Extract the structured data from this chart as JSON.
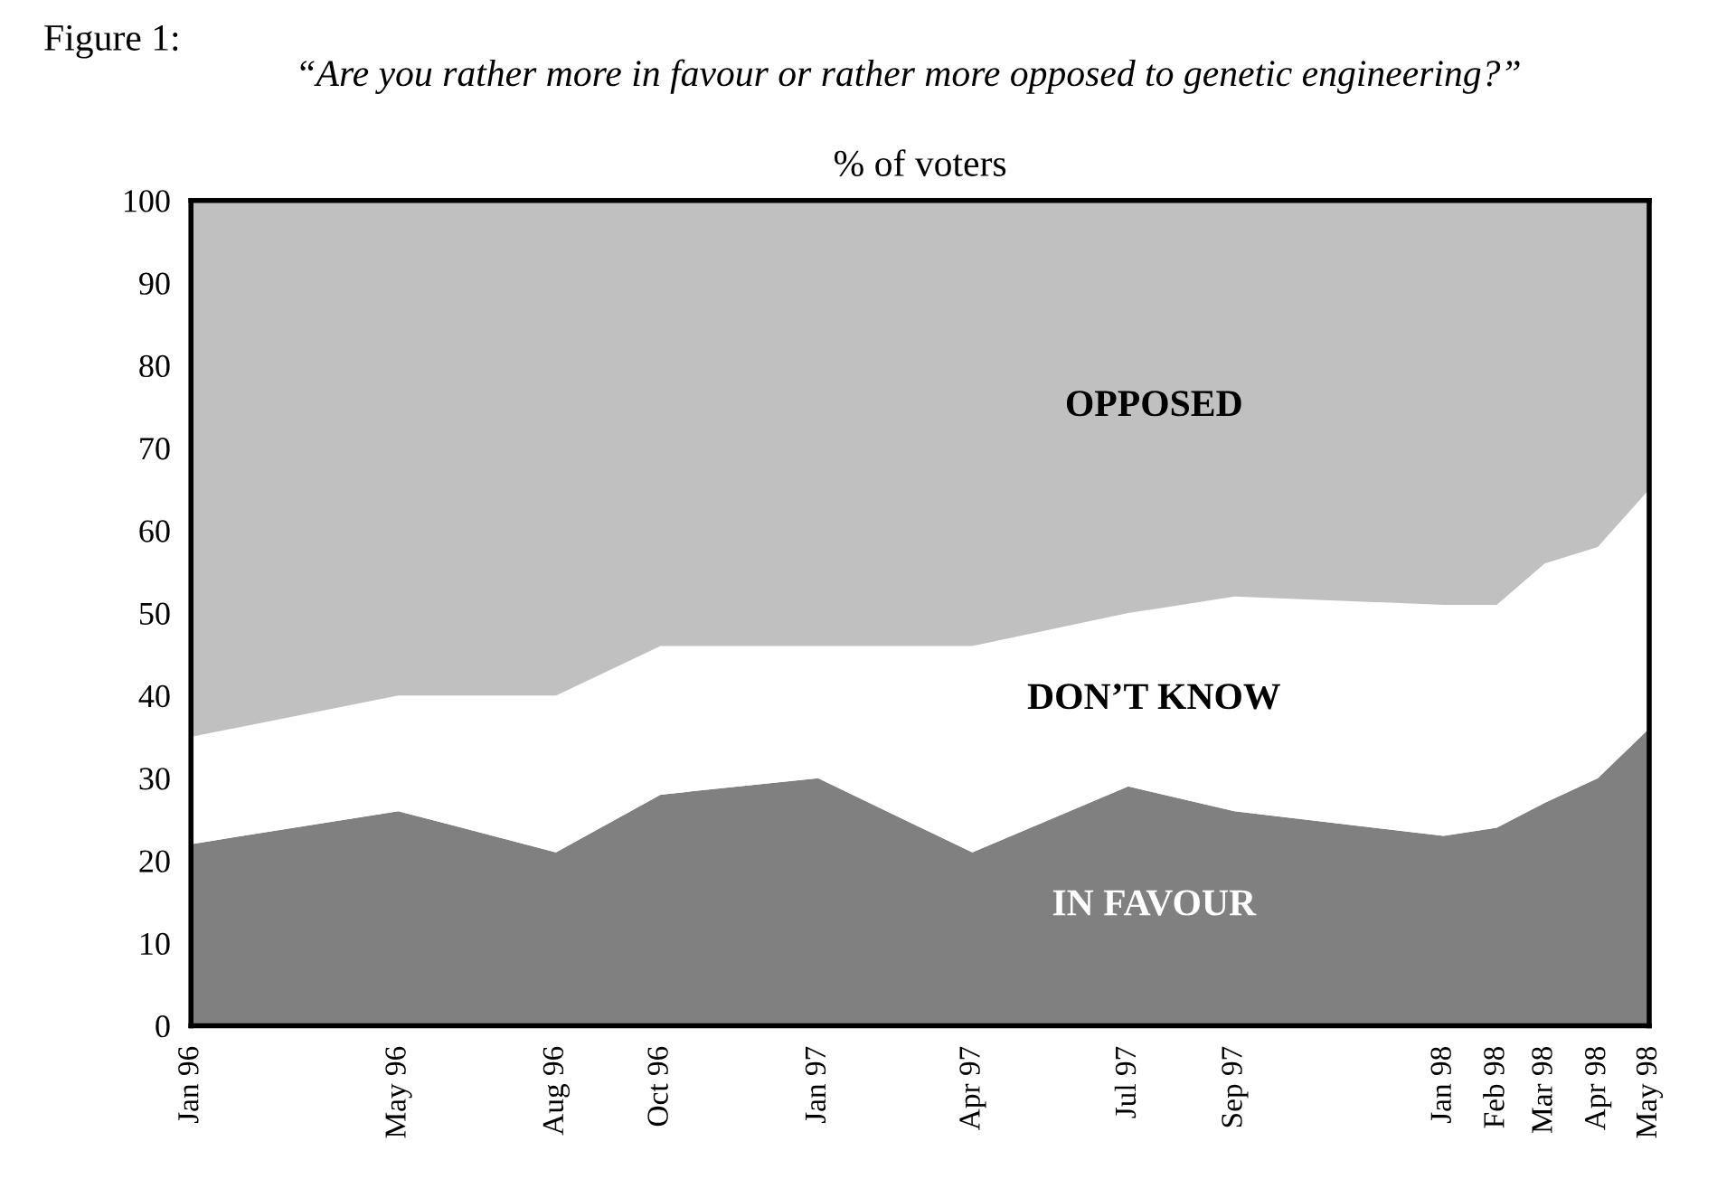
{
  "chart_data": {
    "type": "area",
    "stacked": true,
    "title": "Figure 1:",
    "subtitle": "“Are you rather more in favour or rather more opposed to genetic engineering?”",
    "ylabel": "% of voters",
    "x": [
      "1996-01",
      "1996-05",
      "1996-08",
      "1996-10",
      "1997-01",
      "1997-04",
      "1997-07",
      "1997-09",
      "1998-01",
      "1998-02",
      "1998-03",
      "1998-04",
      "1998-05"
    ],
    "series": [
      {
        "name": "IN FAVOUR",
        "color": "#808080",
        "values": [
          22,
          26,
          21,
          28,
          30,
          21,
          29,
          26,
          23,
          24,
          27,
          30,
          36
        ]
      },
      {
        "name": "DON’T KNOW",
        "color": "#ffffff",
        "values": [
          13,
          14,
          19,
          18,
          16,
          25,
          21,
          26,
          28,
          27,
          29,
          28,
          29
        ]
      },
      {
        "name": "OPPOSED",
        "color": "#c0c0c0",
        "values": [
          65,
          60,
          60,
          54,
          54,
          54,
          50,
          48,
          49,
          49,
          44,
          42,
          35
        ]
      }
    ],
    "xlim": [
      "1996-01",
      "1998-05"
    ],
    "xticks": [
      {
        "value": "1996-01",
        "label": "Jan 96"
      },
      {
        "value": "1996-05",
        "label": "May 96"
      },
      {
        "value": "1996-08",
        "label": "Aug 96"
      },
      {
        "value": "1996-10",
        "label": "Oct 96"
      },
      {
        "value": "1997-01",
        "label": "Jan 97"
      },
      {
        "value": "1997-04",
        "label": "Apr 97"
      },
      {
        "value": "1997-07",
        "label": "Jul 97"
      },
      {
        "value": "1997-09",
        "label": "Sep 97"
      },
      {
        "value": "1998-01",
        "label": "Jan 98"
      },
      {
        "value": "1998-02",
        "label": "Feb 98"
      },
      {
        "value": "1998-03",
        "label": "Mar 98"
      },
      {
        "value": "1998-04",
        "label": "Apr 98"
      },
      {
        "value": "1998-05",
        "label": "May 98"
      }
    ],
    "ylim": [
      0,
      100
    ],
    "yticks": [
      0,
      10,
      20,
      30,
      40,
      50,
      60,
      70,
      80,
      90,
      100
    ],
    "grid": false,
    "legend": false
  }
}
